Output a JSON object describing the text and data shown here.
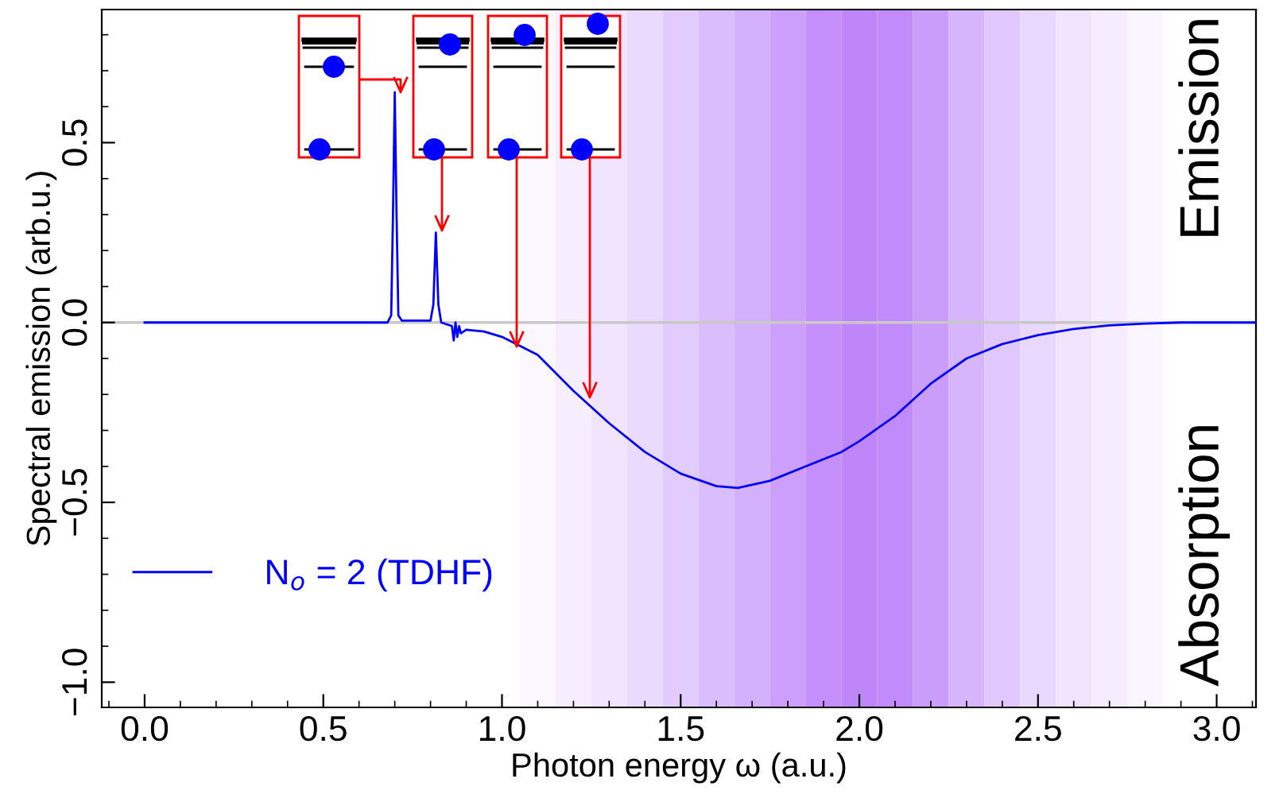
{
  "chart_data": {
    "type": "line",
    "xlabel": "Photon energy ω (a.u.)",
    "ylabel": "Spectral emission (arb.u.)",
    "xlim": [
      -0.12,
      3.11
    ],
    "xticks": [
      {
        "value": 0,
        "label": "0.0"
      },
      0.5,
      {
        "value": 1,
        "label": "1.0"
      },
      1.5,
      {
        "value": 2,
        "label": "2.0"
      },
      2.5,
      {
        "value": 3,
        "label": "3.0"
      }
    ],
    "ylim": [
      -1.07,
      0.87
    ],
    "yticks": [
      {
        "value": -1,
        "label": "−1.0"
      },
      {
        "value": -0.5,
        "label": "−0.5"
      },
      {
        "value": 0,
        "label": "0.0"
      },
      0.5
    ],
    "series": [
      {
        "name": "N$_{o}$ = 2 (TDHF)",
        "color": "#0000ff",
        "x": [
          0,
          0.68,
          0.69,
          0.695,
          0.7,
          0.705,
          0.71,
          0.72,
          0.8,
          0.808,
          0.815,
          0.822,
          0.83,
          0.86,
          0.865,
          0.87,
          0.875,
          0.88,
          0.885,
          0.9,
          0.95,
          1.0,
          1.1,
          1.2,
          1.3,
          1.4,
          1.5,
          1.6,
          1.66,
          1.75,
          1.85,
          1.95,
          2.0,
          2.1,
          2.2,
          2.3,
          2.4,
          2.5,
          2.6,
          2.7,
          2.8,
          2.9,
          3.11
        ],
        "values": [
          0,
          0,
          0.02,
          0.3,
          0.64,
          0.3,
          0.02,
          0.005,
          0.005,
          0.05,
          0.25,
          0.05,
          0,
          -0.01,
          -0.05,
          0,
          -0.04,
          -0.01,
          -0.03,
          -0.02,
          -0.025,
          -0.04,
          -0.09,
          -0.19,
          -0.28,
          -0.36,
          -0.42,
          -0.455,
          -0.46,
          -0.44,
          -0.4,
          -0.36,
          -0.33,
          -0.26,
          -0.17,
          -0.1,
          -0.06,
          -0.035,
          -0.018,
          -0.008,
          -0.003,
          0,
          0
        ]
      }
    ],
    "ref_lines": [
      {
        "axis": "y",
        "value": 0,
        "color": "#c8c8c8"
      }
    ],
    "bands": [
      {
        "axis": "x",
        "from": 1.05,
        "to": 1.15,
        "color": "#fbf7ff"
      },
      {
        "axis": "x",
        "from": 1.15,
        "to": 1.25,
        "color": "#f6eeff"
      },
      {
        "axis": "x",
        "from": 1.25,
        "to": 1.35,
        "color": "#f1e4fe"
      },
      {
        "axis": "x",
        "from": 1.35,
        "to": 1.45,
        "color": "#eadafe"
      },
      {
        "axis": "x",
        "from": 1.45,
        "to": 1.55,
        "color": "#e2cbfd"
      },
      {
        "axis": "x",
        "from": 1.55,
        "to": 1.65,
        "color": "#dabdfd"
      },
      {
        "axis": "x",
        "from": 1.65,
        "to": 1.75,
        "color": "#d3b0fc"
      },
      {
        "axis": "x",
        "from": 1.75,
        "to": 1.85,
        "color": "#cb9ffb"
      },
      {
        "axis": "x",
        "from": 1.85,
        "to": 1.95,
        "color": "#c48ffb"
      },
      {
        "axis": "x",
        "from": 1.95,
        "to": 2.05,
        "color": "#bf86fa"
      },
      {
        "axis": "x",
        "from": 2.05,
        "to": 2.15,
        "color": "#c28bfb"
      },
      {
        "axis": "x",
        "from": 2.15,
        "to": 2.25,
        "color": "#cb9dfb"
      },
      {
        "axis": "x",
        "from": 2.25,
        "to": 2.35,
        "color": "#d7b5fc"
      },
      {
        "axis": "x",
        "from": 2.35,
        "to": 2.45,
        "color": "#e0c7fd"
      },
      {
        "axis": "x",
        "from": 2.45,
        "to": 2.55,
        "color": "#e9d8fe"
      },
      {
        "axis": "x",
        "from": 2.55,
        "to": 2.65,
        "color": "#f0e3fe"
      },
      {
        "axis": "x",
        "from": 2.65,
        "to": 2.75,
        "color": "#f5ecff"
      },
      {
        "axis": "x",
        "from": 2.75,
        "to": 2.85,
        "color": "#faf6ff"
      }
    ],
    "annotations": [
      "Absorption",
      "Emission"
    ],
    "legend": "bottom left",
    "grid": false,
    "marker": "none",
    "line_style": "solid"
  }
}
